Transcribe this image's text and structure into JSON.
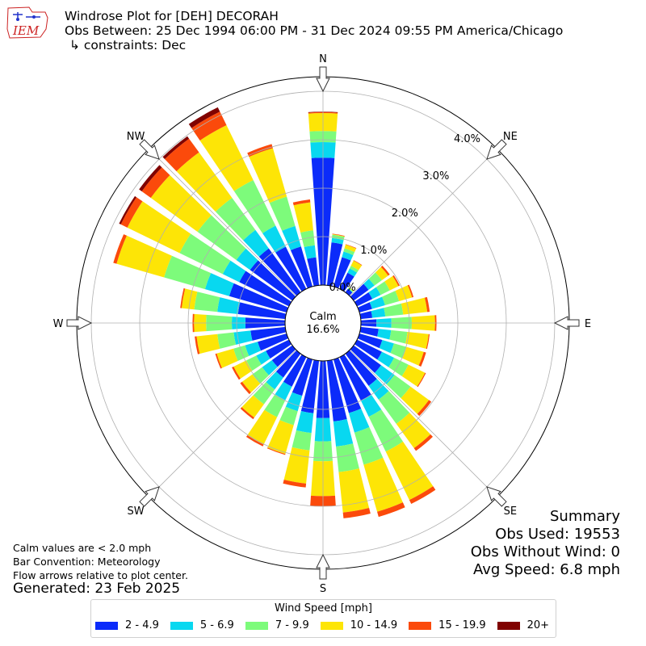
{
  "header": {
    "title": "Windrose Plot for [DEH] DECORAH",
    "subtitle": "Obs Between: 25 Dec 1994 06:00 PM - 31 Dec 2024 09:55 PM America/Chicago",
    "constraints": "↳ constraints: Dec",
    "logo_text": "IEM"
  },
  "notes": {
    "calm_def": "Calm values are < 2.0 mph",
    "bar_convention": "Bar Convention: Meteorology",
    "flow_arrows": "Flow arrows relative to plot center.",
    "generated": "Generated: 23 Feb 2025"
  },
  "summary": {
    "title": "Summary",
    "obs_used": "Obs Used: 19553",
    "obs_without_wind": "Obs Without Wind: 0",
    "avg_speed": "Avg Speed: 6.8 mph"
  },
  "calm": {
    "label": "Calm",
    "value": "16.6%"
  },
  "legend": {
    "title": "Wind Speed [mph]"
  },
  "chart_data": {
    "type": "windrose",
    "title": "Windrose Plot for [DEH] DECORAH",
    "calm_percent": 16.6,
    "radial_ticks": [
      "0.0%",
      "1.0%",
      "2.0%",
      "3.0%",
      "4.0%"
    ],
    "radial_tick_values": [
      0,
      1,
      2,
      3,
      4
    ],
    "rmax": 4.3,
    "directions": [
      {
        "label": "N",
        "angle": 0
      },
      {
        "label": "NE",
        "angle": 45
      },
      {
        "label": "E",
        "angle": 90
      },
      {
        "label": "SE",
        "angle": 135
      },
      {
        "label": "S",
        "angle": 180
      },
      {
        "label": "SW",
        "angle": 225
      },
      {
        "label": "W",
        "angle": 270
      },
      {
        "label": "NW",
        "angle": 315
      }
    ],
    "speed_bins": [
      {
        "name": "2 - 4.9",
        "color": "#0b2bfa"
      },
      {
        "name": "5 - 6.9",
        "color": "#08d8f0"
      },
      {
        "name": "7 - 9.9",
        "color": "#7dfb7b"
      },
      {
        "name": "10 - 14.9",
        "color": "#fde506"
      },
      {
        "name": "15 - 19.9",
        "color": "#fb4a0b"
      },
      {
        "name": "20+",
        "color": "#800200"
      }
    ],
    "sectors": [
      {
        "dir": 0,
        "cumulative": [
          2.63,
          2.95,
          3.18,
          3.55,
          3.57,
          3.58
        ]
      },
      {
        "dir": 10,
        "cumulative": [
          0.89,
          0.98,
          1.05,
          1.06,
          1.07,
          1.07
        ]
      },
      {
        "dir": 20,
        "cumulative": [
          0.63,
          0.75,
          0.82,
          0.9,
          0.91,
          0.91
        ]
      },
      {
        "dir": 30,
        "cumulative": [
          0.37,
          0.47,
          0.53,
          0.65,
          0.66,
          0.66
        ]
      },
      {
        "dir": 40,
        "cumulative": [
          0.09,
          0.1,
          0.12,
          0.13,
          0.13,
          0.13
        ]
      },
      {
        "dir": 50,
        "cumulative": [
          0.38,
          0.53,
          0.72,
          0.88,
          0.92,
          0.92
        ]
      },
      {
        "dir": 60,
        "cumulative": [
          0.35,
          0.54,
          0.75,
          0.95,
          0.98,
          0.98
        ]
      },
      {
        "dir": 70,
        "cumulative": [
          0.27,
          0.55,
          0.85,
          1.13,
          1.16,
          1.16
        ]
      },
      {
        "dir": 80,
        "cumulative": [
          0.24,
          0.51,
          0.88,
          1.38,
          1.43,
          1.43
        ]
      },
      {
        "dir": 90,
        "cumulative": [
          0.32,
          0.63,
          1.05,
          1.53,
          1.56,
          1.56
        ]
      },
      {
        "dir": 100,
        "cumulative": [
          0.37,
          0.63,
          0.97,
          1.41,
          1.43,
          1.43
        ]
      },
      {
        "dir": 110,
        "cumulative": [
          0.49,
          0.74,
          1.01,
          1.38,
          1.43,
          1.43
        ]
      },
      {
        "dir": 120,
        "cumulative": [
          0.57,
          0.85,
          1.18,
          1.56,
          1.58,
          1.58
        ]
      },
      {
        "dir": 130,
        "cumulative": [
          0.7,
          1.04,
          1.45,
          1.92,
          1.98,
          1.98
        ]
      },
      {
        "dir": 140,
        "cumulative": [
          0.82,
          1.17,
          1.79,
          2.41,
          2.48,
          2.48
        ]
      },
      {
        "dir": 150,
        "cumulative": [
          1.0,
          1.37,
          2.17,
          3.28,
          3.37,
          3.37
        ]
      },
      {
        "dir": 160,
        "cumulative": [
          1.15,
          1.57,
          2.26,
          3.27,
          3.38,
          3.38
        ]
      },
      {
        "dir": 170,
        "cumulative": [
          1.26,
          1.78,
          2.31,
          3.15,
          3.27,
          3.27
        ]
      },
      {
        "dir": 180,
        "cumulative": [
          1.18,
          1.66,
          2.07,
          2.79,
          3.0,
          3.0
        ]
      },
      {
        "dir": 190,
        "cumulative": [
          1.09,
          1.5,
          1.86,
          2.55,
          2.63,
          2.63
        ]
      },
      {
        "dir": 200,
        "cumulative": [
          0.78,
          1.11,
          1.41,
          2.03,
          2.05,
          2.05
        ]
      },
      {
        "dir": 210,
        "cumulative": [
          0.68,
          0.99,
          1.38,
          2.01,
          2.05,
          2.05
        ]
      },
      {
        "dir": 220,
        "cumulative": [
          0.61,
          0.91,
          1.29,
          1.63,
          1.67,
          1.67
        ]
      },
      {
        "dir": 230,
        "cumulative": [
          0.52,
          0.77,
          1.02,
          1.28,
          1.33,
          1.33
        ]
      },
      {
        "dir": 240,
        "cumulative": [
          0.53,
          0.75,
          0.98,
          1.27,
          1.31,
          1.31
        ]
      },
      {
        "dir": 250,
        "cumulative": [
          0.62,
          0.89,
          1.14,
          1.5,
          1.53,
          1.53
        ]
      },
      {
        "dir": 260,
        "cumulative": [
          0.72,
          1.07,
          1.41,
          1.84,
          1.88,
          1.88
        ]
      },
      {
        "dir": 270,
        "cumulative": [
          0.82,
          1.1,
          1.63,
          1.88,
          1.91,
          1.91
        ]
      },
      {
        "dir": 280,
        "cumulative": [
          0.98,
          1.41,
          1.89,
          2.15,
          2.18,
          2.18
        ]
      },
      {
        "dir": 290,
        "cumulative": [
          1.23,
          1.75,
          2.63,
          3.65,
          3.72,
          3.72
        ]
      },
      {
        "dir": 300,
        "cumulative": [
          1.14,
          1.52,
          2.51,
          3.71,
          3.86,
          3.9
        ]
      },
      {
        "dir": 310,
        "cumulative": [
          1.08,
          1.43,
          2.42,
          3.61,
          3.84,
          3.91
        ]
      },
      {
        "dir": 320,
        "cumulative": [
          1.12,
          1.59,
          2.41,
          3.57,
          3.92,
          3.98
        ]
      },
      {
        "dir": 330,
        "cumulative": [
          0.97,
          1.45,
          2.5,
          3.76,
          4.07,
          4.17
        ]
      },
      {
        "dir": 340,
        "cumulative": [
          0.86,
          1.3,
          1.93,
          2.97,
          3.06,
          3.06
        ]
      },
      {
        "dir": 350,
        "cumulative": [
          0.58,
          0.83,
          1.14,
          1.72,
          1.78,
          1.78
        ]
      }
    ]
  }
}
